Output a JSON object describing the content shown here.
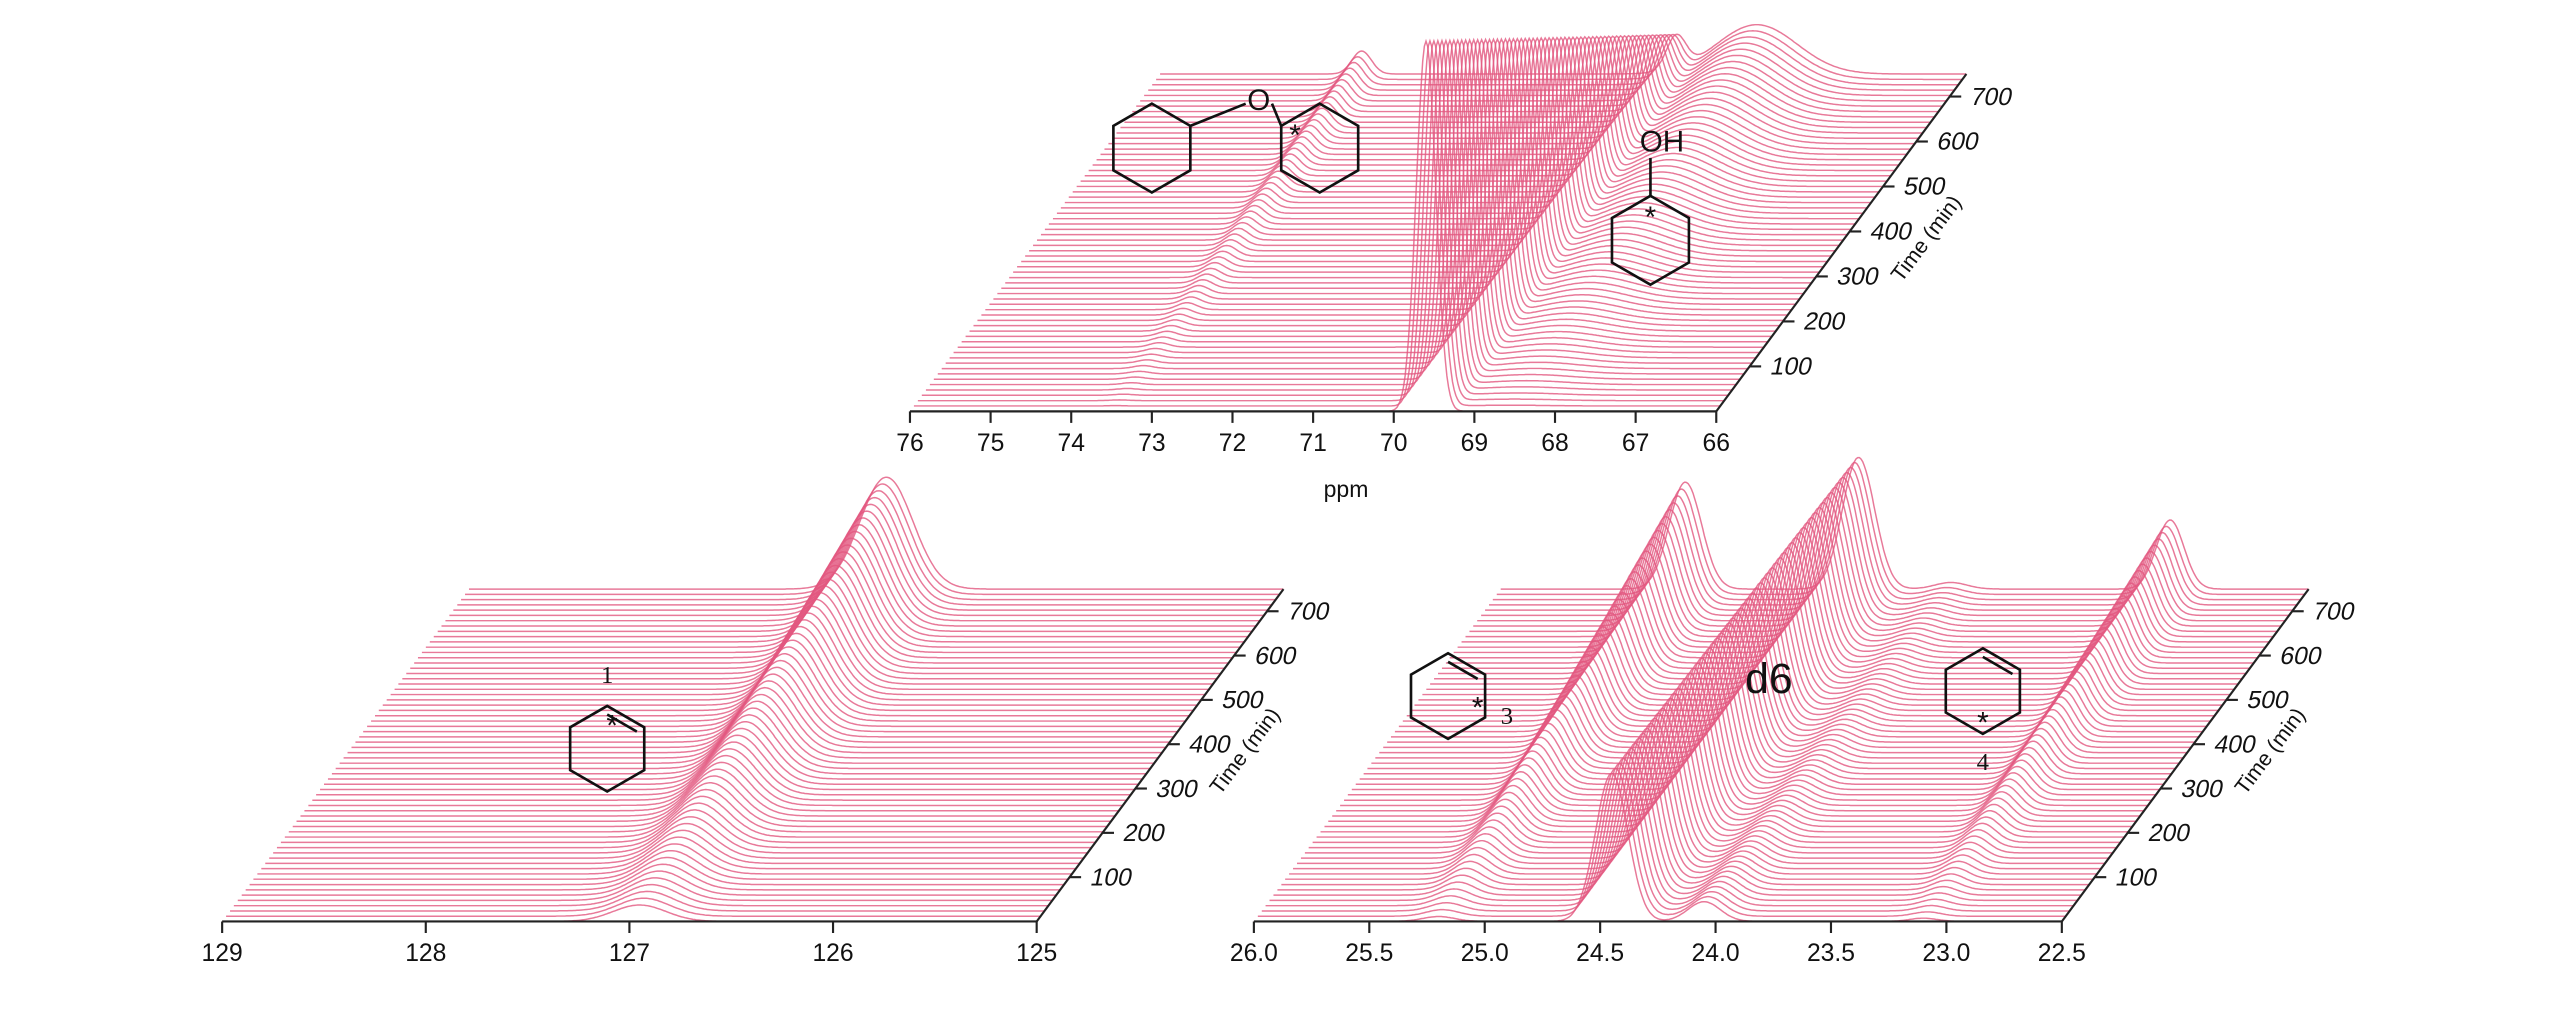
{
  "chart_data": [
    {
      "type": "waterfall",
      "color": "#e2577f",
      "x_label": "ppm",
      "time_label": "Time (min)",
      "xlim": [
        76,
        66
      ],
      "xticks": [
        76,
        75,
        74,
        73,
        72,
        71,
        70,
        69,
        68,
        67,
        66
      ],
      "time_lim": [
        0,
        750
      ],
      "time_ticks": [
        100,
        200,
        300,
        400,
        500,
        600,
        700
      ],
      "peaks": [
        {
          "center": 69.6,
          "width": 0.12,
          "height_start": 225,
          "height_end": 20
        },
        {
          "center": 68.6,
          "width": 0.5,
          "height_start": 0,
          "height_end": 30
        },
        {
          "center": 73.5,
          "width": 0.12,
          "height_start": 0,
          "height_end": 14
        }
      ],
      "annotations": [
        "O",
        "*",
        "OH",
        "*"
      ]
    },
    {
      "type": "waterfall",
      "color": "#e2577f",
      "time_label": "Time (min)",
      "xlim": [
        129,
        125
      ],
      "xticks": [
        129,
        128,
        127,
        126,
        125
      ],
      "time_lim": [
        0,
        750
      ],
      "time_ticks": [
        100,
        200,
        300,
        400,
        500,
        600,
        700
      ],
      "peaks": [
        {
          "center": 126.95,
          "width": 0.13,
          "height_start": 10,
          "height_end": 68
        }
      ],
      "annotations": [
        "1",
        "*"
      ]
    },
    {
      "type": "waterfall",
      "color": "#e2577f",
      "time_label": "Time (min)",
      "xlim": [
        26,
        22.5
      ],
      "xticks": [
        {
          "value": 26,
          "label": "26.0"
        },
        25.5,
        {
          "value": 25,
          "label": "25.0"
        },
        24.5,
        {
          "value": 24,
          "label": "24.0"
        },
        23.5,
        {
          "value": 23,
          "label": "23.0"
        },
        22.5
      ],
      "time_lim": [
        0,
        750
      ],
      "time_ticks": [
        100,
        200,
        300,
        400,
        500,
        600,
        700
      ],
      "peaks": [
        {
          "center": 24.45,
          "width": 0.07,
          "height_start": 90,
          "height_end": 80
        },
        {
          "center": 25.2,
          "width": 0.07,
          "height_start": 3,
          "height_end": 65
        },
        {
          "center": 24.05,
          "width": 0.07,
          "height_start": 12,
          "height_end": 4
        },
        {
          "center": 23.1,
          "width": 0.06,
          "height_start": 2,
          "height_end": 42
        }
      ],
      "annotations": [
        "*",
        "3",
        "d6",
        "*",
        "4"
      ]
    }
  ]
}
